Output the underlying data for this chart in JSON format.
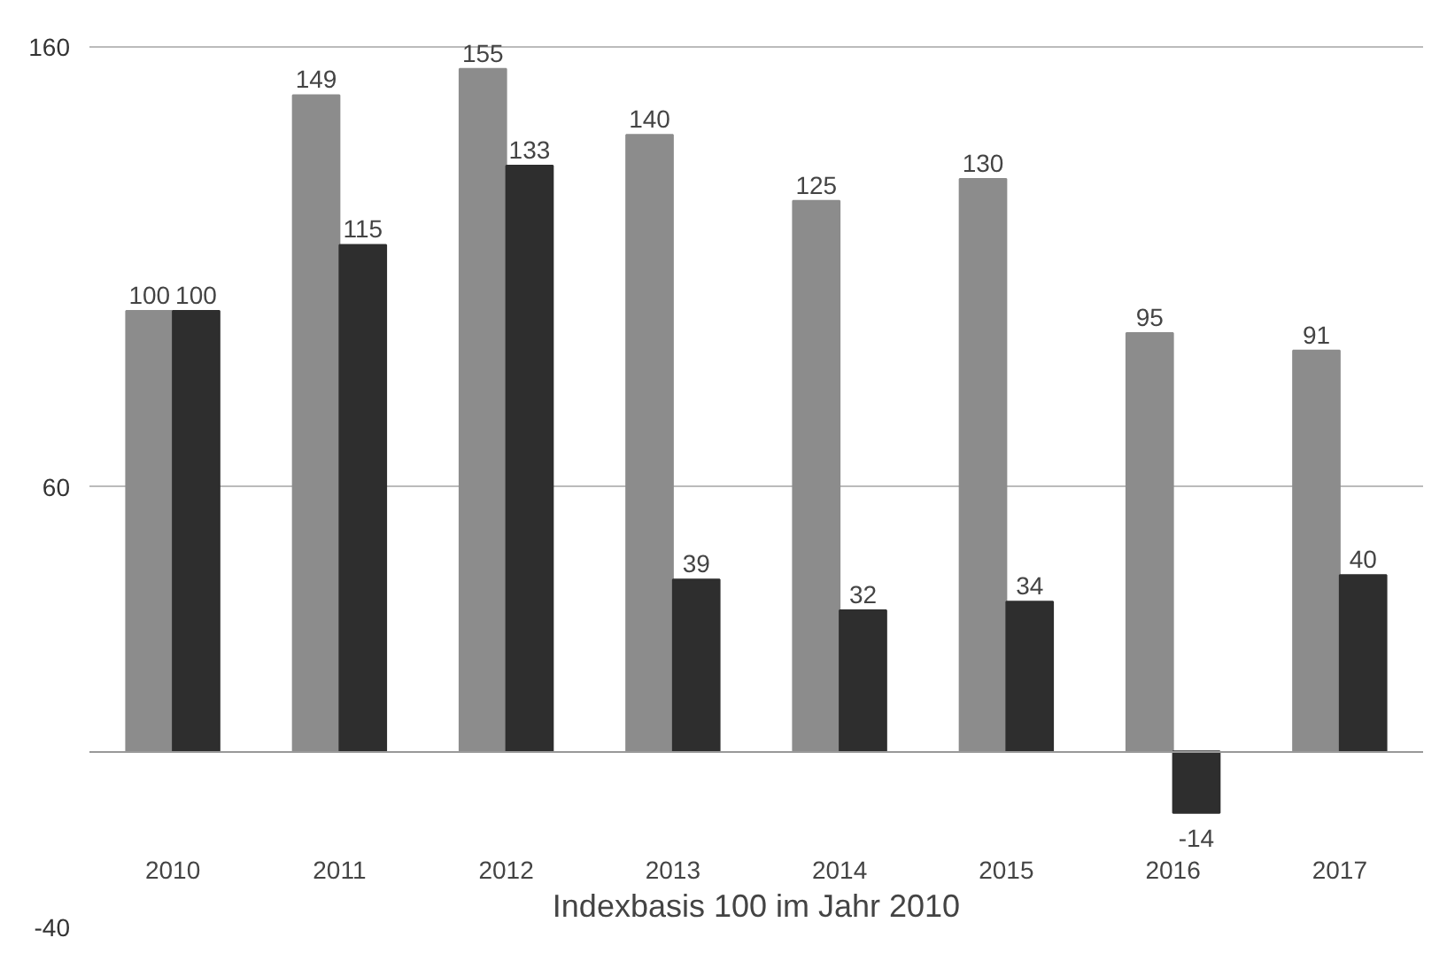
{
  "chart_data": {
    "type": "bar",
    "categories": [
      "2010",
      "2011",
      "2012",
      "2013",
      "2014",
      "2015",
      "2016",
      "2017"
    ],
    "xlabel": "Indexbasis 100 im Jahr 2010",
    "series": [
      {
        "color": "#8c8c8c",
        "values": [
          100,
          149,
          155,
          140,
          125,
          130,
          95,
          91
        ]
      },
      {
        "color": "#2e2e2e",
        "values": [
          100,
          115,
          133,
          39,
          32,
          34,
          -14,
          40
        ]
      }
    ],
    "ylim": [
      -40,
      160
    ],
    "yticks": [
      -40,
      60,
      160
    ],
    "grid": "y",
    "data_labels": true
  }
}
